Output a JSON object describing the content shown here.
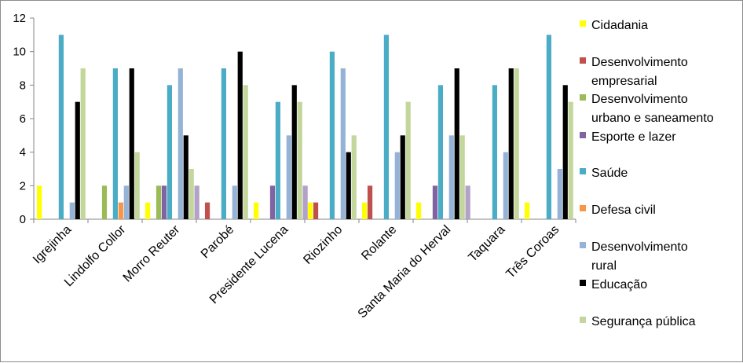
{
  "chart_data": {
    "type": "bar",
    "title": "",
    "xlabel": "",
    "ylabel": "",
    "ylim": [
      0,
      12
    ],
    "yticks": [
      0,
      2,
      4,
      6,
      8,
      10,
      12
    ],
    "grid": false,
    "legend_position": "right",
    "categories": [
      "Igrejinha",
      "Lindolfo Collor",
      "Morro Reuter",
      "Parobé",
      "Presidente Lucena",
      "Riozinho",
      "Rolante",
      "Santa Maria do Herval",
      "Taquara",
      "Três Coroas"
    ],
    "series": [
      {
        "name": "Cidadania",
        "color": "#ffff00",
        "values": [
          2,
          0,
          1,
          0,
          1,
          1,
          1,
          1,
          0,
          1
        ]
      },
      {
        "name": "Desenvolvimento empresarial",
        "color": "#c0504d",
        "values": [
          0,
          0,
          0,
          1,
          0,
          1,
          2,
          0,
          0,
          0
        ]
      },
      {
        "name": "Desenvolvimento urbano e saneamento",
        "color": "#9bbb59",
        "values": [
          0,
          2,
          2,
          0,
          0,
          0,
          0,
          0,
          0,
          0
        ]
      },
      {
        "name": "Esporte e lazer",
        "color": "#8064a2",
        "values": [
          0,
          0,
          2,
          0,
          2,
          0,
          0,
          2,
          0,
          0
        ]
      },
      {
        "name": "Saúde",
        "color": "#4bacc6",
        "values": [
          11,
          9,
          8,
          9,
          7,
          10,
          11,
          8,
          8,
          11
        ]
      },
      {
        "name": "Defesa civil",
        "color": "#f79646",
        "values": [
          0,
          1,
          0,
          0,
          0,
          0,
          0,
          0,
          0,
          0
        ]
      },
      {
        "name": "Desenvolvimento rural",
        "color": "#95b3d7",
        "values": [
          1,
          2,
          9,
          2,
          5,
          9,
          4,
          5,
          4,
          3
        ]
      },
      {
        "name": "Educação",
        "color": "#000000",
        "values": [
          7,
          9,
          5,
          10,
          8,
          4,
          5,
          9,
          9,
          8
        ]
      },
      {
        "name": "Segurança pública",
        "color": "#c3d69b",
        "values": [
          9,
          4,
          3,
          8,
          7,
          5,
          7,
          5,
          9,
          7
        ]
      }
    ],
    "extra_bar": {
      "color": "#b2a2c7",
      "values": [
        0,
        0,
        2,
        0,
        2,
        0,
        0,
        2,
        0,
        0
      ]
    },
    "legend_lines": [
      [
        "Cidadania"
      ],
      [
        "Desenvolvimento",
        "empresarial"
      ],
      [
        "Desenvolvimento",
        "urbano e saneamento"
      ],
      [
        "Esporte e lazer"
      ],
      [
        "Saúde"
      ],
      [
        "Defesa civil"
      ],
      [
        "Desenvolvimento",
        "rural"
      ],
      [
        "Educação"
      ],
      [
        "Segurança pública"
      ]
    ]
  }
}
